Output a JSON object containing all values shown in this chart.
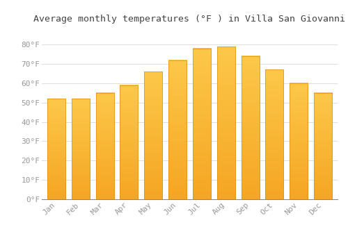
{
  "title": "Average monthly temperatures (°F ) in Villa San Giovanni",
  "months": [
    "Jan",
    "Feb",
    "Mar",
    "Apr",
    "May",
    "Jun",
    "Jul",
    "Aug",
    "Sep",
    "Oct",
    "Nov",
    "Dec"
  ],
  "values": [
    52,
    52,
    55,
    59,
    66,
    72,
    78,
    79,
    74,
    67,
    60,
    55
  ],
  "bar_color_top": "#FDC84A",
  "bar_color_bottom": "#F5A623",
  "bar_edge_color": "#E09010",
  "background_color": "#FFFFFF",
  "grid_color": "#DDDDDD",
  "tick_label_color": "#999999",
  "title_color": "#444444",
  "ylim": [
    0,
    88
  ],
  "yticks": [
    0,
    10,
    20,
    30,
    40,
    50,
    60,
    70,
    80
  ],
  "ytick_labels": [
    "0°F",
    "10°F",
    "20°F",
    "30°F",
    "40°F",
    "50°F",
    "60°F",
    "70°F",
    "80°F"
  ],
  "title_fontsize": 9.5,
  "tick_fontsize": 8,
  "bar_width": 0.75
}
